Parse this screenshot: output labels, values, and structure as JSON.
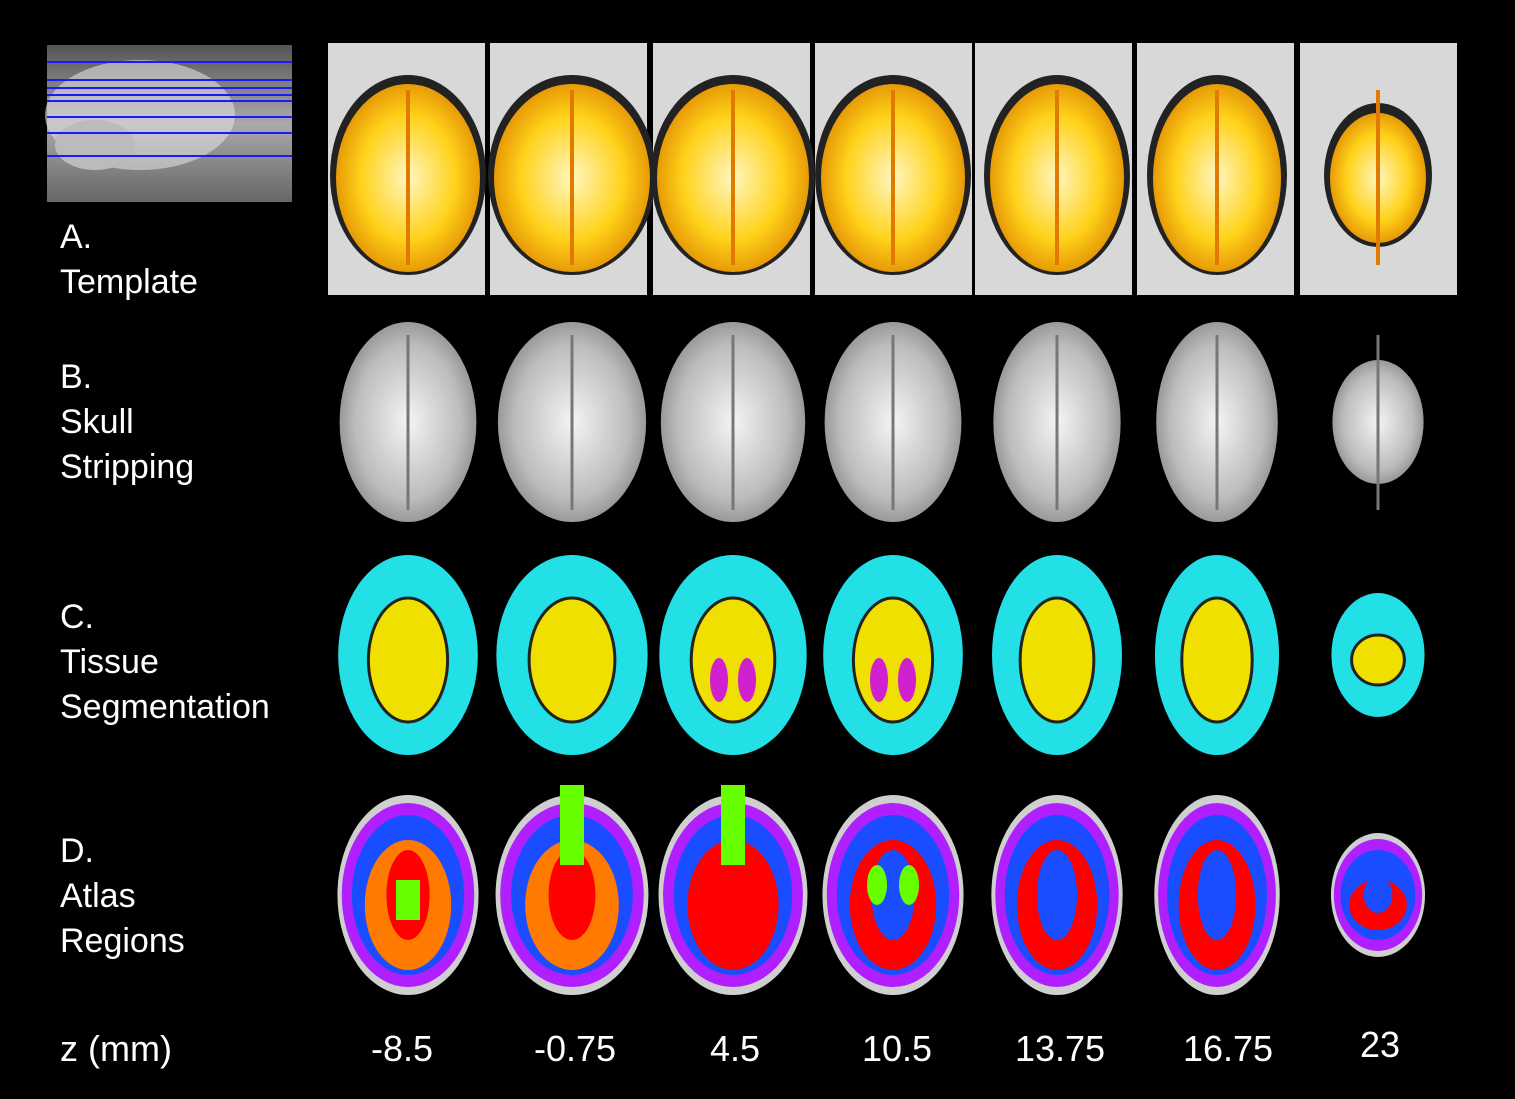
{
  "rows": {
    "a": {
      "letter": "A.",
      "lines": [
        "Template"
      ]
    },
    "b": {
      "letter": "B.",
      "lines": [
        "Skull",
        "Stripping"
      ]
    },
    "c": {
      "letter": "C.",
      "lines": [
        "Tissue",
        "Segmentation"
      ]
    },
    "d": {
      "letter": "D.",
      "lines": [
        "Atlas",
        "Regions"
      ]
    }
  },
  "z_axis": {
    "label": "z (mm)",
    "values": [
      "-8.5",
      "-0.75",
      "4.5",
      "10.5",
      "13.75",
      "16.75",
      "23"
    ]
  },
  "colors": {
    "background": "#000000",
    "slice_lines": "#1a1aff",
    "template_overlay": "#ffd21a",
    "gray_matter": "#22e0e6",
    "white_matter": "#f0e000",
    "csf": "#d020d0",
    "atlas": [
      "#ff0000",
      "#1a4dff",
      "#b020ff",
      "#ff7a00",
      "#66ff00",
      "#ffff00",
      "#4aa8ff"
    ]
  }
}
